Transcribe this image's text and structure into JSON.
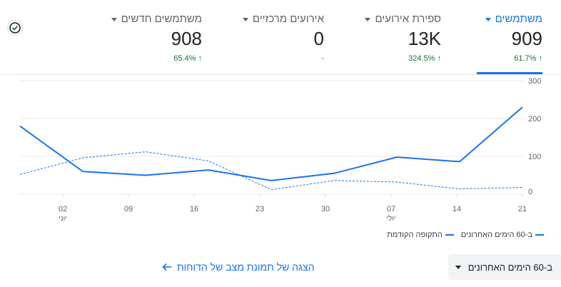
{
  "metrics": [
    {
      "label": "משתמשים",
      "value": "909",
      "delta": "61.7%",
      "arrow": "↑"
    },
    {
      "label": "ספירת אירועים",
      "value": "13K",
      "delta": "324.5%",
      "arrow": "↑"
    },
    {
      "label": "אירועים מרכזיים",
      "value": "0",
      "delta": "-",
      "arrow": ""
    },
    {
      "label": "משתמשים חדשים",
      "value": "908",
      "delta": "65.4%",
      "arrow": "↑"
    }
  ],
  "legend": {
    "current": "ב-60 הימים האחרונים",
    "previous": "התקופה הקודמת"
  },
  "footer": {
    "link": "הצגה של תמונת מצב של הדוחות",
    "range": "ב-60 הימים האחרונים"
  },
  "colors": {
    "accent": "#1a73e8",
    "positive": "#137333"
  },
  "chart_data": {
    "type": "line",
    "x_tick_labels": [
      "02",
      "09",
      "16",
      "23",
      "30",
      "07",
      "14",
      "21"
    ],
    "x_tick_sublabels": [
      "יוני",
      "",
      "",
      "",
      "",
      "יולי",
      "",
      ""
    ],
    "y_ticks": [
      "0",
      "100",
      "200",
      "300"
    ],
    "ylim": [
      0,
      300
    ],
    "series": [
      {
        "name": "ב-60 הימים האחרונים",
        "style": "solid",
        "values": [
          180,
          60,
          50,
          64,
          36,
          55,
          98,
          86,
          230
        ]
      },
      {
        "name": "התקופה הקודמת",
        "style": "dashed",
        "values": [
          52,
          96,
          112,
          88,
          12,
          36,
          32,
          14,
          18
        ]
      }
    ]
  }
}
